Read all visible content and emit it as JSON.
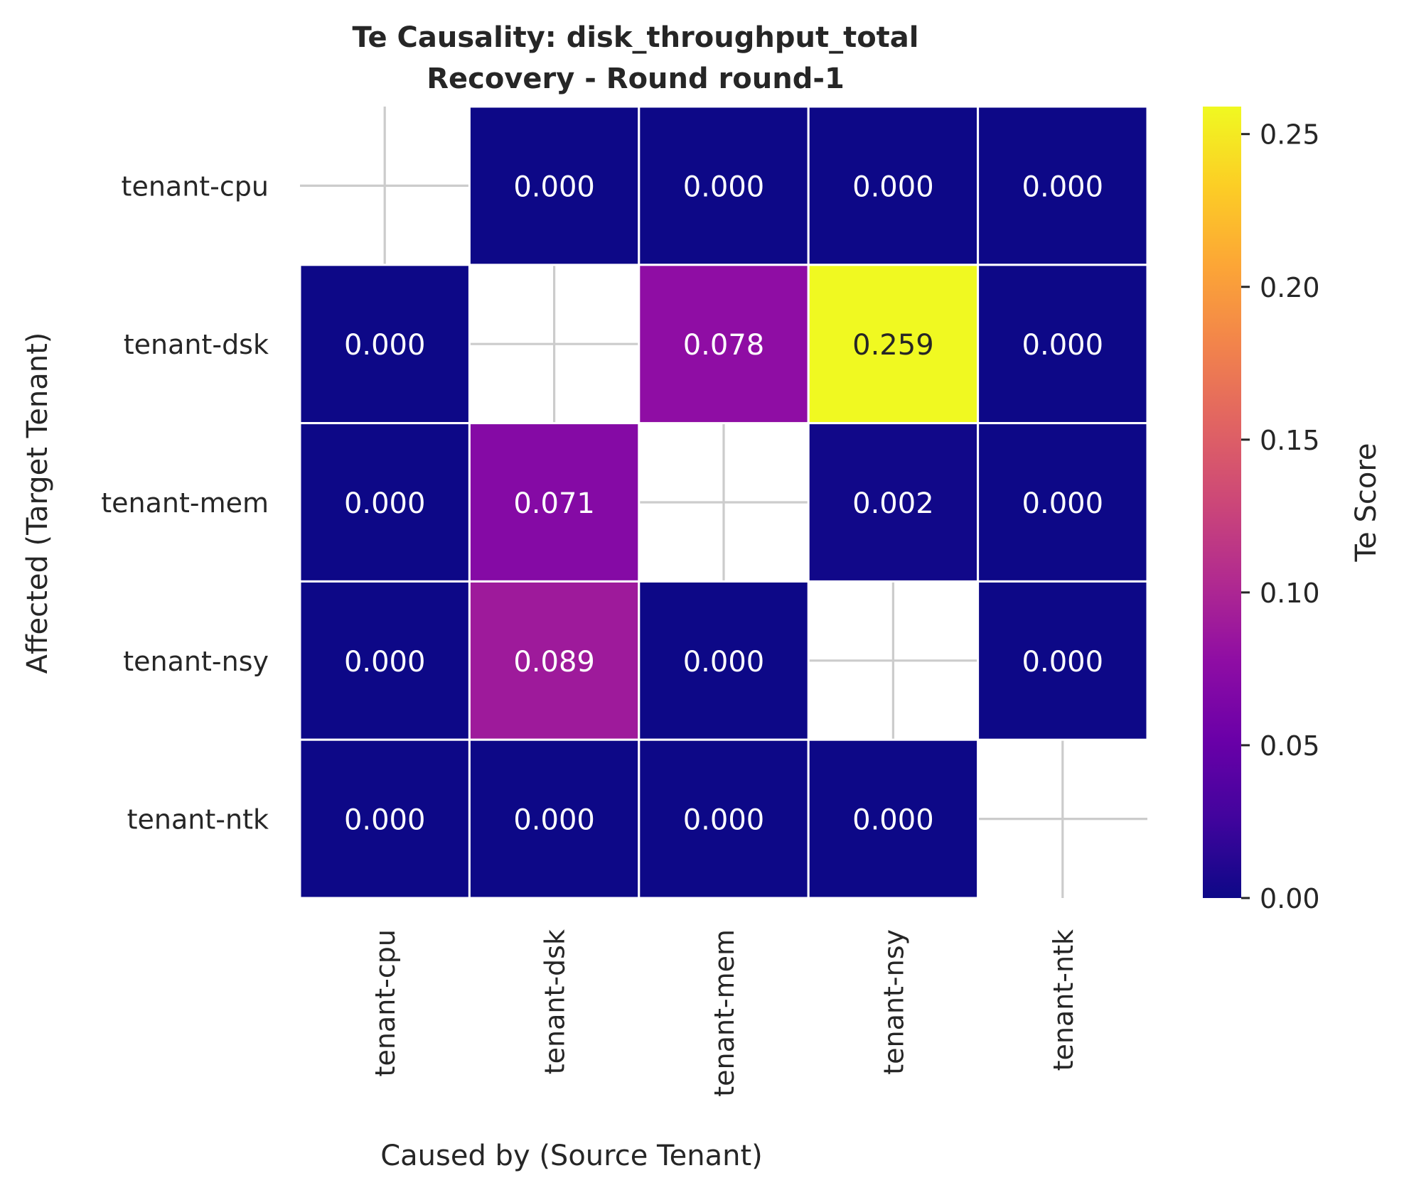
{
  "chart_data": {
    "type": "heatmap",
    "title": "Te Causality: disk_throughput_total",
    "subtitle": "Recovery - Round round-1",
    "xlabel": "Caused by (Source Tenant)",
    "ylabel": "Affected (Target Tenant)",
    "x_categories": [
      "tenant-cpu",
      "tenant-dsk",
      "tenant-mem",
      "tenant-nsy",
      "tenant-ntk"
    ],
    "y_categories": [
      "tenant-cpu",
      "tenant-dsk",
      "tenant-mem",
      "tenant-nsy",
      "tenant-ntk"
    ],
    "values": [
      [
        null,
        0.0,
        0.0,
        0.0,
        0.0
      ],
      [
        0.0,
        null,
        0.078,
        0.259,
        0.0
      ],
      [
        0.0,
        0.071,
        null,
        0.002,
        0.0
      ],
      [
        0.0,
        0.089,
        0.0,
        null,
        0.0
      ],
      [
        0.0,
        0.0,
        0.0,
        0.0,
        null
      ]
    ],
    "annotation_format": "0.000",
    "colormap": "plasma",
    "colorbar": {
      "label": "Te Score",
      "range": [
        0,
        0.259
      ],
      "ticks": [
        0.0,
        0.05,
        0.1,
        0.15,
        0.2,
        0.25
      ],
      "tick_labels": [
        "0.00",
        "0.05",
        "0.10",
        "0.15",
        "0.20",
        "0.25"
      ]
    },
    "grid": true,
    "legend": "colorbar-right"
  }
}
